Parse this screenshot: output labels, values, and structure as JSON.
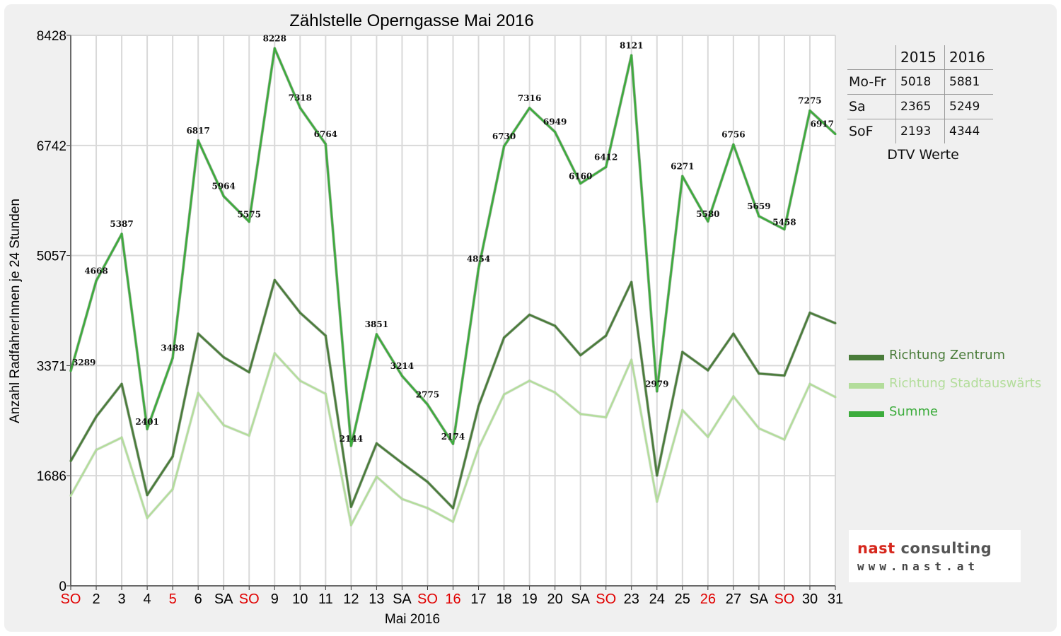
{
  "chart_data": {
    "type": "line",
    "title": "Zählstelle Operngasse Mai 2016",
    "xlabel": "Mai 2016",
    "ylabel": "Anzahl RadfahrerInnen je 24 Stunden",
    "ylim": [
      0,
      8428
    ],
    "yticks": [
      "0",
      "1686",
      "3371",
      "5057",
      "6742",
      "8428"
    ],
    "categories": [
      "SO",
      "2",
      "3",
      "4",
      "5",
      "6",
      "SA",
      "SO",
      "9",
      "10",
      "11",
      "12",
      "13",
      "SA",
      "SO",
      "16",
      "17",
      "18",
      "19",
      "20",
      "SA",
      "SO",
      "23",
      "24",
      "25",
      "26",
      "27",
      "SA",
      "SO",
      "30",
      "31"
    ],
    "red_categories": [
      0,
      4,
      7,
      14,
      15,
      21,
      25,
      28
    ],
    "grid": true,
    "legend_position": "right",
    "series": [
      {
        "name": "Richtung Zentrum",
        "color": "#4a7c3a",
        "values": [
          1910,
          2590,
          3090,
          1390,
          1980,
          3860,
          3500,
          3270,
          4680,
          4180,
          3830,
          1210,
          2180,
          1880,
          1590,
          1190,
          2750,
          3800,
          4150,
          3980,
          3530,
          3830,
          4650,
          1690,
          3580,
          3300,
          3860,
          3250,
          3220,
          4180,
          4020
        ],
        "labels": []
      },
      {
        "name": "Richtung Stadtauswärts",
        "color": "#b3dd9b",
        "values": [
          1380,
          2080,
          2270,
          1040,
          1480,
          2950,
          2460,
          2300,
          3560,
          3140,
          2940,
          930,
          1670,
          1330,
          1190,
          980,
          2110,
          2930,
          3140,
          2960,
          2630,
          2580,
          3460,
          1290,
          2690,
          2280,
          2900,
          2410,
          2240,
          3090,
          2890
        ],
        "labels": []
      },
      {
        "name": "Summe",
        "color": "#3cac3c",
        "values": [
          3289,
          4668,
          5387,
          2401,
          3488,
          6817,
          5964,
          5575,
          8228,
          7318,
          6764,
          2144,
          3851,
          3214,
          2775,
          2174,
          4854,
          6730,
          7316,
          6949,
          6160,
          6412,
          8121,
          2979,
          6271,
          5580,
          6756,
          5659,
          5458,
          7275,
          6917
        ],
        "labels": [
          "3289",
          "4668",
          "5387",
          "2401",
          "3488",
          "6817",
          "5964",
          "5575",
          "8228",
          "7318",
          "6764",
          "2144",
          "3851",
          "3214",
          "2775",
          "2174",
          "4854",
          "6730",
          "7316",
          "6949",
          "6160",
          "6412",
          "8121",
          "2979",
          "6271",
          "5580",
          "6756",
          "5659",
          "5458",
          "7275",
          "6917"
        ]
      }
    ],
    "category_label_color_red": "#e00000",
    "category_label_color": "#000000"
  },
  "dtv": {
    "headers": [
      "",
      "2015",
      "2016"
    ],
    "rows": [
      [
        "Mo-Fr",
        "5018",
        "5881"
      ],
      [
        "Sa",
        "2365",
        "5249"
      ],
      [
        "SoF",
        "2193",
        "4344"
      ]
    ],
    "caption": "DTV Werte"
  },
  "logo": {
    "name_red": "nast",
    "name_grey": " consulting",
    "url": "www.nast.at"
  }
}
